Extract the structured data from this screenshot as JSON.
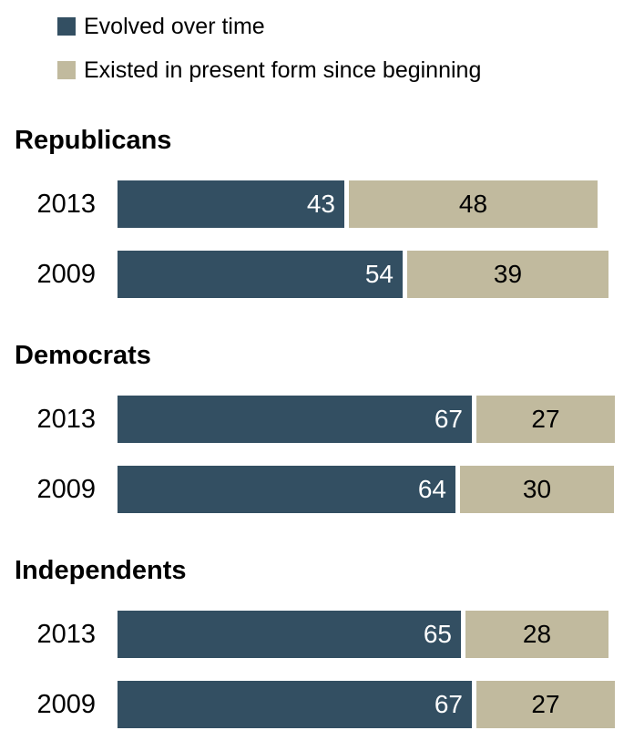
{
  "chart_data": {
    "type": "bar",
    "variant": "horizontal-stacked",
    "unit": "percent",
    "grid": false,
    "legend_position": "top-left",
    "legend": [
      {
        "name": "evolved",
        "label": "Evolved over time",
        "color": "#334F62",
        "value_text_color": "#FFFFFF"
      },
      {
        "name": "existed",
        "label": "Existed in present form since beginning",
        "color": "#C1BA9E",
        "value_text_color": "#000000"
      }
    ],
    "groups": [
      {
        "name": "Republicans",
        "rows": [
          {
            "year": "2013",
            "values": [
              43,
              48
            ]
          },
          {
            "year": "2009",
            "values": [
              54,
              39
            ]
          }
        ]
      },
      {
        "name": "Democrats",
        "rows": [
          {
            "year": "2013",
            "values": [
              67,
              27
            ]
          },
          {
            "year": "2009",
            "values": [
              64,
              30
            ]
          }
        ]
      },
      {
        "name": "Independents",
        "rows": [
          {
            "year": "2013",
            "values": [
              65,
              28
            ]
          },
          {
            "year": "2009",
            "values": [
              67,
              27
            ]
          }
        ]
      }
    ]
  },
  "colors": {
    "background": "#FFFFFF",
    "text": "#000000",
    "evolved_segment": "#334F62",
    "existed_segment": "#C1BA9E"
  }
}
